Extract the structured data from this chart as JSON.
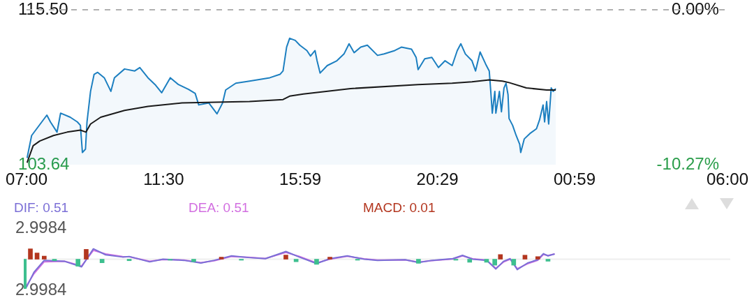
{
  "chart_data": [
    {
      "type": "line",
      "series": [
        {
          "type": "area",
          "color": "#1c7fc0",
          "x": [
            "--01-01T07:01",
            "--01-01T07:10",
            "--01-01T07:40",
            "--01-01T07:47",
            "--01-01T08:00",
            "--01-01T08:07",
            "--01-01T08:26",
            "--01-01T08:40",
            "--01-01T08:46",
            "--01-01T08:50",
            "--01-01T08:56",
            "--01-01T08:59",
            "--01-01T09:06",
            "--01-01T09:13",
            "--01-01T09:20",
            "--01-01T09:33",
            "--01-01T09:46",
            "--01-01T09:53",
            "--01-01T10:13",
            "--01-01T10:33",
            "--01-01T10:43",
            "--01-01T10:59",
            "--01-01T11:13",
            "--01-01T11:26",
            "--01-01T11:43",
            "--01-01T11:59",
            "--01-01T12:19",
            "--01-01T12:32",
            "--01-01T12:39",
            "--01-01T12:59",
            "--01-01T13:15",
            "--01-01T13:26",
            "--01-01T13:32",
            "--01-01T13:52",
            "--01-01T14:19",
            "--01-01T14:59",
            "--01-01T15:19",
            "--01-01T15:25",
            "--01-01T15:32",
            "--01-01T15:38",
            "--01-01T15:49",
            "--01-01T15:58",
            "--01-01T16:12",
            "--01-01T16:19",
            "--01-01T16:28",
            "--01-01T16:32",
            "--01-01T16:38",
            "--01-01T16:52",
            "--01-01T17:11",
            "--01-01T17:25",
            "--01-01T17:35",
            "--01-01T17:45",
            "--01-01T17:58",
            "--01-01T18:11",
            "--01-01T18:31",
            "--01-01T18:44",
            "--01-01T19:05",
            "--01-01T19:18",
            "--01-01T19:38",
            "--01-01T19:47",
            "--01-01T19:51",
            "--01-01T20:04",
            "--01-01T20:18",
            "--01-01T20:31",
            "--01-01T20:44",
            "--01-01T20:58",
            "--01-01T21:08",
            "--01-01T21:15",
            "--01-01T21:24",
            "--01-01T21:37",
            "--01-01T21:44",
            "--01-01T21:53",
            "--01-01T22:04",
            "--01-01T22:11",
            "--01-01T22:14",
            "--01-01T22:17",
            "--01-01T22:22",
            "--01-01T22:24",
            "--01-01T22:31",
            "--01-01T22:35",
            "--01-01T22:40",
            "--01-01T22:44",
            "--01-01T22:48",
            "--01-01T22:50",
            "--01-01T22:57",
            "--01-01T23:04",
            "--01-01T23:11",
            "--01-01T23:13",
            "--01-01T23:20",
            "--01-01T23:31",
            "--01-01T23:44",
            "--01-01T23:50",
            "--01-01T23:57",
            "--01-02T00:00",
            "--01-02T00:04",
            "--01-02T00:08",
            "--01-02T00:13",
            "--01-02T00:17",
            "--01-02T00:22"
          ],
          "values": [
            104.16,
            105.88,
            107.44,
            106.92,
            106.14,
            107.59,
            107.28,
            106.92,
            106.66,
            104.58,
            104.84,
            106.92,
            109.26,
            110.56,
            110.71,
            110.3,
            109.26,
            110.3,
            110.97,
            110.82,
            111.08,
            110.3,
            109.78,
            109.15,
            110.3,
            109.78,
            109.41,
            109.1,
            108.22,
            108.37,
            107.54,
            108.37,
            109.36,
            109.88,
            110.04,
            110.3,
            110.56,
            110.82,
            112.64,
            113.32,
            113.16,
            112.79,
            112.38,
            111.96,
            112.38,
            111.6,
            110.66,
            111.23,
            111.6,
            112.12,
            112.9,
            112.22,
            112.64,
            112.79,
            112.01,
            112.12,
            112.38,
            112.64,
            112.48,
            111.86,
            110.92,
            111.75,
            111.86,
            111.08,
            111.6,
            111.23,
            112.38,
            112.9,
            112.12,
            111.6,
            110.82,
            112.27,
            111.34,
            110.82,
            109.26,
            107.59,
            109.26,
            107.59,
            109.26,
            107.7,
            109.52,
            109.88,
            109.0,
            107.18,
            106.66,
            105.88,
            105.2,
            104.58,
            105.62,
            106.03,
            106.4,
            107.07,
            108.22,
            106.92,
            108.48,
            106.76,
            109.52,
            109.26,
            109.47
          ]
        },
        {
          "type": "line",
          "color": "#1a1a1a",
          "x": [
            "--01-01T07:01",
            "--01-01T07:13",
            "--01-01T07:26",
            "--01-01T07:53",
            "--01-01T08:20",
            "--01-01T08:46",
            "--01-01T08:57",
            "--01-01T09:06",
            "--01-01T09:26",
            "--01-01T10:13",
            "--01-01T10:59",
            "--01-01T12:06",
            "--01-01T13:12",
            "--01-01T14:19",
            "--01-01T15:25",
            "--01-01T15:38",
            "--01-01T16:05",
            "--01-01T17:38",
            "--01-01T19:51",
            "--01-01T20:58",
            "--01-01T21:37",
            "--01-01T22:11",
            "--01-01T22:37",
            "--01-01T22:50",
            "--01-01T23:24",
            "--01-02T00:04",
            "--01-02T00:22"
          ],
          "values": [
            103.8,
            105.1,
            105.46,
            105.88,
            106.14,
            106.29,
            106.14,
            106.76,
            107.28,
            107.8,
            108.11,
            108.37,
            108.43,
            108.48,
            108.63,
            108.89,
            109.05,
            109.47,
            109.78,
            109.88,
            109.99,
            110.14,
            110.04,
            109.93,
            109.52,
            109.36,
            109.36
          ]
        }
      ],
      "xlim": [
        "--01-01T07:00",
        "--01-02T06:00"
      ],
      "xticks": [
        {
          "value": "--01-01T07:00",
          "label": "07:00"
        },
        {
          "value": "--01-01T11:30",
          "label": "11:30"
        },
        {
          "value": "--01-01T15:59",
          "label": "15:59"
        },
        {
          "value": "--01-01T20:29",
          "label": "20:29"
        },
        {
          "value": "--01-02T00:59",
          "label": "00:59"
        },
        {
          "value": "--01-02T06:00",
          "label": "06:00"
        }
      ],
      "ylim": [
        103.64,
        115.5
      ],
      "yticks": [
        {
          "value": 103.64,
          "label": "103.64"
        },
        {
          "value": 115.5,
          "label": "115.50"
        }
      ],
      "y2lim": [
        -10.27,
        0
      ],
      "y2ticks": [
        {
          "value": -10.27,
          "label": "-10.27%"
        },
        {
          "value": 0,
          "label": "0.00%"
        }
      ],
      "ref_lines": [
        {
          "axis": "y",
          "value": 115.5,
          "color": "#b0b0b0",
          "line_style": "dashed"
        }
      ],
      "marker": "none",
      "grid": false,
      "legend": false
    },
    {
      "type": "line",
      "legend": "top left",
      "tick_labels": "y",
      "marker": "none",
      "grid": false,
      "series": [
        {
          "name": "DIF: 0.51",
          "type": "line",
          "color": "#7b6fd6",
          "x": [
            "--01-01T07:05",
            "--01-01T07:20",
            "--01-01T07:40",
            "--01-01T08:20",
            "--01-01T08:53",
            "--01-01T09:16",
            "--01-01T09:40",
            "--01-01T10:13",
            "--01-01T10:26",
            "--01-01T11:06",
            "--01-01T11:32",
            "--01-01T12:13",
            "--01-01T12:46",
            "--01-01T13:12",
            "--01-01T13:46",
            "--01-01T14:19",
            "--01-01T14:52",
            "--01-01T15:32",
            "--01-01T15:58",
            "--01-01T16:32",
            "--01-01T16:58",
            "--01-01T17:32",
            "--01-01T18:05",
            "--01-01T18:31",
            "--01-01T19:25",
            "--01-01T19:51",
            "--01-01T20:18",
            "--01-01T20:58",
            "--01-01T21:17",
            "--01-01T21:37",
            "--01-01T22:04",
            "--01-01T22:22",
            "--01-01T22:37",
            "--01-01T22:50",
            "--01-01T23:04",
            "--01-01T23:24",
            "--01-01T23:44",
            "--01-01T23:55",
            "--01-02T00:04",
            "--01-02T00:17"
          ],
          "values": [
            -2.74,
            -1.26,
            -0.11,
            -0.21,
            -0.74,
            1.0,
            0.42,
            0.21,
            0.26,
            -0.26,
            0.0,
            -0.11,
            -0.37,
            -0.11,
            0.32,
            0.16,
            0.05,
            0.74,
            0.21,
            -0.42,
            0.05,
            0.32,
            0.0,
            -0.11,
            -0.05,
            -0.32,
            -0.11,
            0.05,
            0.37,
            0.0,
            -0.11,
            -0.95,
            -0.21,
            0.05,
            -1.0,
            -0.37,
            -0.05,
            0.53,
            0.32,
            0.51
          ]
        },
        {
          "name": "DEA: 0.51",
          "type": "line",
          "color": "#d26ee0",
          "x": [
            "--01-01T07:05",
            "--01-01T07:20",
            "--01-01T07:40",
            "--01-01T08:20",
            "--01-01T08:53",
            "--01-01T09:16",
            "--01-01T09:40",
            "--01-01T10:13",
            "--01-01T10:26",
            "--01-01T11:06",
            "--01-01T11:32",
            "--01-01T12:13",
            "--01-01T12:46",
            "--01-01T13:12",
            "--01-01T13:46",
            "--01-01T14:19",
            "--01-01T14:52",
            "--01-01T15:32",
            "--01-01T15:58",
            "--01-01T16:32",
            "--01-01T16:58",
            "--01-01T17:32",
            "--01-01T18:05",
            "--01-01T18:31",
            "--01-01T19:25",
            "--01-01T19:51",
            "--01-01T20:18",
            "--01-01T20:58",
            "--01-01T21:17",
            "--01-01T21:37",
            "--01-01T22:04",
            "--01-01T22:22",
            "--01-01T22:37",
            "--01-01T22:50",
            "--01-01T23:04",
            "--01-01T23:24",
            "--01-01T23:44",
            "--01-01T23:55",
            "--01-02T00:04",
            "--01-02T00:17"
          ],
          "values": [
            -2.6,
            -1.4,
            -0.25,
            -0.2,
            -0.65,
            0.85,
            0.5,
            0.25,
            0.24,
            -0.2,
            -0.03,
            -0.09,
            -0.33,
            -0.15,
            0.26,
            0.19,
            0.07,
            0.65,
            0.28,
            -0.36,
            0.0,
            0.28,
            0.03,
            -0.09,
            -0.06,
            -0.28,
            -0.14,
            0.02,
            0.32,
            0.03,
            -0.09,
            -0.88,
            -0.28,
            0.0,
            -0.92,
            -0.45,
            -0.1,
            0.45,
            0.35,
            0.51
          ]
        },
        {
          "name": "MACD: 0.01",
          "type": "bar",
          "color": "#b3361f",
          "x": [
            "--01-01T07:01",
            "--01-01T07:13",
            "--01-01T07:26",
            "--01-01T07:40",
            "--01-01T08:00",
            "--01-01T08:46",
            "--01-01T09:02",
            "--01-01T09:33",
            "--01-01T10:26",
            "--01-01T11:46",
            "--01-01T12:32",
            "--01-01T13:26",
            "--01-01T14:05",
            "--01-01T15:32",
            "--01-01T15:52",
            "--01-01T16:32",
            "--01-01T16:58",
            "--01-01T17:52",
            "--01-01T19:51",
            "--01-01T21:04",
            "--01-01T21:31",
            "--01-01T22:04",
            "--01-01T22:20",
            "--01-01T22:31",
            "--01-01T22:57",
            "--01-01T23:19",
            "--01-01T23:44",
            "--01-02T00:04"
          ],
          "values": [
            -2.84,
            1.0,
            0.6,
            0.3,
            -0.15,
            -0.68,
            0.95,
            -0.35,
            -0.15,
            -0.1,
            -0.25,
            0.2,
            -0.1,
            0.4,
            -0.25,
            -0.5,
            0.2,
            -0.1,
            -0.4,
            -0.1,
            -0.3,
            -0.3,
            -0.58,
            0.45,
            -0.58,
            0.39,
            0.25,
            -0.2
          ],
          "colors": [
            "#3dbf8f",
            "#b3361f",
            "#b3361f",
            "#b3361f",
            "#3dbf8f",
            "#3dbf8f",
            "#b3361f",
            "#3dbf8f",
            "#3dbf8f",
            "#3dbf8f",
            "#3dbf8f",
            "#b3361f",
            "#3dbf8f",
            "#b3361f",
            "#3dbf8f",
            "#3dbf8f",
            "#b3361f",
            "#3dbf8f",
            "#3dbf8f",
            "#3dbf8f",
            "#3dbf8f",
            "#3dbf8f",
            "#3dbf8f",
            "#b3361f",
            "#3dbf8f",
            "#b3361f",
            "#b3361f",
            "#3dbf8f"
          ]
        }
      ],
      "xlim": [
        "--01-01T07:00",
        "--01-02T06:00"
      ],
      "ylim": [
        -2.9984,
        2.9984
      ],
      "yticks": [
        {
          "value": -2.9984,
          "label": "2.9984"
        },
        {
          "value": 2.9984,
          "label": "2.9984"
        }
      ],
      "ref_lines": [
        {
          "axis": "y",
          "value": 0,
          "color": "#eeeeee",
          "line_style": "solid"
        }
      ]
    }
  ]
}
